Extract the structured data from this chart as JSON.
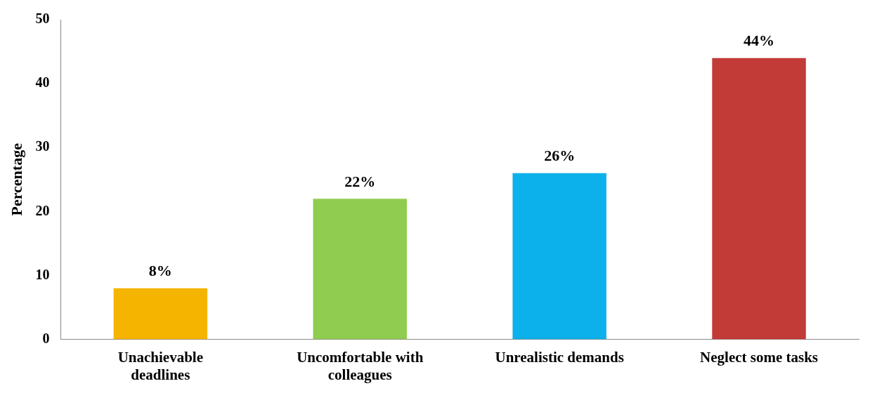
{
  "chart_data": {
    "type": "bar",
    "ylabel": "Percentage",
    "categories": [
      "Unachievable deadlines",
      "Uncomfortable with colleagues",
      "Unrealistic demands",
      "Neglect some tasks"
    ],
    "values": [
      8,
      22,
      26,
      44
    ],
    "value_labels": [
      "8%",
      "22%",
      "26%",
      "44%"
    ],
    "colors": [
      "#f5b400",
      "#8fcc4f",
      "#0cb0ea",
      "#c23b37"
    ],
    "ylim": [
      0,
      50
    ],
    "yticks": [
      0,
      10,
      20,
      30,
      40,
      50
    ],
    "grid": false,
    "legend": false
  }
}
